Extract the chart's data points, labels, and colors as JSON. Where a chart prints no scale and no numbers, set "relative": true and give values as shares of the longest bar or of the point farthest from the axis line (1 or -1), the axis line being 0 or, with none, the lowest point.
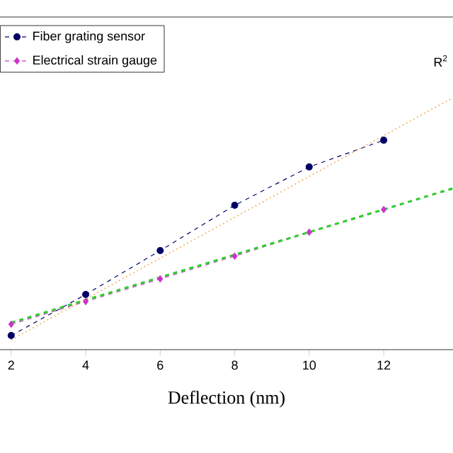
{
  "chart_data": {
    "type": "line",
    "xlabel": "Deflection (nm)",
    "relative": true,
    "xlim": [
      1.7,
      13.86
    ],
    "xticks": [
      2,
      4,
      6,
      8,
      10,
      12
    ],
    "legend": "top left",
    "grid": false,
    "annotations": [
      "R$^{2}$"
    ],
    "series": [
      {
        "name": "Fiber grating sensor",
        "color": "#000066",
        "marker": "circle",
        "line_style": "dashed",
        "x": [
          2,
          4,
          6,
          8,
          10,
          12
        ],
        "values": [
          0.056,
          0.219,
          0.393,
          0.573,
          0.725,
          0.831
        ]
      },
      {
        "name": "Electrical strain gauge",
        "color": "#cc33cc",
        "marker": "diamond",
        "line_style": "dashed",
        "x": [
          2,
          4,
          6,
          8,
          10,
          12
        ],
        "values": [
          0.101,
          0.191,
          0.281,
          0.371,
          0.466,
          0.556
        ]
      },
      {
        "color": "#f0b060",
        "marker": "none",
        "line_style": "dotted",
        "x": [
          2,
          13.86
        ],
        "values": [
          0.039,
          1.0
        ]
      },
      {
        "color": "#33cc33",
        "marker": "none",
        "line_style": "dashed",
        "x": [
          2,
          13.86
        ],
        "values": [
          0.107,
          0.64
        ]
      }
    ]
  }
}
